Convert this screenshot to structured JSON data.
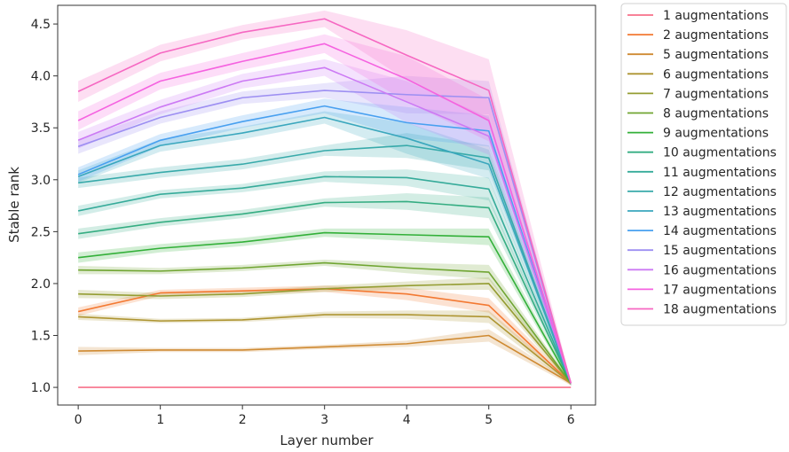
{
  "chart_data": {
    "type": "line",
    "xlabel": "Layer number",
    "ylabel": "Stable rank",
    "x": [
      0,
      1,
      2,
      3,
      4,
      5,
      6
    ],
    "xlim": [
      -0.25,
      6.3
    ],
    "ylim": [
      0.83,
      4.68
    ],
    "xticks": [
      "0",
      "1",
      "2",
      "3",
      "4",
      "5",
      "6"
    ],
    "yticks": [
      "1.0",
      "1.5",
      "2.0",
      "2.5",
      "3.0",
      "3.5",
      "4.0",
      "4.5"
    ],
    "grid": false,
    "legend_position": "outside-right",
    "series": [
      {
        "name": "1 augmentations",
        "color": "#f77189",
        "values": [
          1.0,
          1.0,
          1.0,
          1.0,
          1.0,
          1.0,
          1.0
        ],
        "ci": [
          0.0,
          0.0,
          0.0,
          0.0,
          0.0,
          0.0,
          0.0
        ]
      },
      {
        "name": "2 augmentations",
        "color": "#f37932",
        "values": [
          1.73,
          1.91,
          1.93,
          1.95,
          1.9,
          1.79,
          1.04
        ],
        "ci": [
          0.04,
          0.03,
          0.03,
          0.03,
          0.06,
          0.07,
          0.02
        ]
      },
      {
        "name": "5 augmentations",
        "color": "#cf8a32",
        "values": [
          1.35,
          1.36,
          1.36,
          1.39,
          1.42,
          1.5,
          1.04
        ],
        "ci": [
          0.04,
          0.02,
          0.02,
          0.02,
          0.03,
          0.06,
          0.02
        ]
      },
      {
        "name": "6 augmentations",
        "color": "#ae9532",
        "values": [
          1.68,
          1.64,
          1.65,
          1.7,
          1.7,
          1.68,
          1.04
        ],
        "ci": [
          0.03,
          0.02,
          0.02,
          0.03,
          0.04,
          0.06,
          0.02
        ]
      },
      {
        "name": "7 augmentations",
        "color": "#949d32",
        "values": [
          1.9,
          1.88,
          1.9,
          1.95,
          1.98,
          2.0,
          1.04
        ],
        "ci": [
          0.04,
          0.03,
          0.03,
          0.03,
          0.04,
          0.06,
          0.02
        ]
      },
      {
        "name": "8 augmentations",
        "color": "#70a532",
        "values": [
          2.13,
          2.12,
          2.15,
          2.2,
          2.15,
          2.11,
          1.04
        ],
        "ci": [
          0.04,
          0.03,
          0.03,
          0.03,
          0.05,
          0.07,
          0.02
        ]
      },
      {
        "name": "9 augmentations",
        "color": "#33b039",
        "values": [
          2.25,
          2.34,
          2.4,
          2.49,
          2.47,
          2.45,
          1.04
        ],
        "ci": [
          0.05,
          0.04,
          0.04,
          0.04,
          0.06,
          0.08,
          0.02
        ]
      },
      {
        "name": "10 augmentations",
        "color": "#35ad82",
        "values": [
          2.48,
          2.59,
          2.67,
          2.78,
          2.79,
          2.73,
          1.04
        ],
        "ci": [
          0.05,
          0.04,
          0.04,
          0.04,
          0.08,
          0.1,
          0.02
        ]
      },
      {
        "name": "11 augmentations",
        "color": "#36ab9a",
        "values": [
          2.7,
          2.86,
          2.92,
          3.03,
          3.02,
          2.91,
          1.04
        ],
        "ci": [
          0.05,
          0.04,
          0.04,
          0.05,
          0.08,
          0.11,
          0.02
        ]
      },
      {
        "name": "12 augmentations",
        "color": "#38aaaa",
        "values": [
          2.97,
          3.07,
          3.15,
          3.28,
          3.33,
          3.21,
          1.04
        ],
        "ci": [
          0.05,
          0.05,
          0.05,
          0.05,
          0.12,
          0.12,
          0.02
        ]
      },
      {
        "name": "13 augmentations",
        "color": "#3aa7bd",
        "values": [
          3.03,
          3.33,
          3.45,
          3.6,
          3.4,
          3.15,
          1.04
        ],
        "ci": [
          0.06,
          0.06,
          0.06,
          0.06,
          0.15,
          0.14,
          0.02
        ]
      },
      {
        "name": "14 augmentations",
        "color": "#48a0f0",
        "values": [
          3.05,
          3.38,
          3.56,
          3.71,
          3.55,
          3.47,
          1.04
        ],
        "ci": [
          0.07,
          0.06,
          0.06,
          0.07,
          0.15,
          0.15,
          0.02
        ]
      },
      {
        "name": "15 augmentations",
        "color": "#9d8ff2",
        "values": [
          3.32,
          3.6,
          3.79,
          3.86,
          3.82,
          3.79,
          1.04
        ],
        "ci": [
          0.07,
          0.06,
          0.06,
          0.07,
          0.18,
          0.16,
          0.02
        ]
      },
      {
        "name": "16 augmentations",
        "color": "#cc7af4",
        "values": [
          3.38,
          3.7,
          3.95,
          4.08,
          3.75,
          3.42,
          1.04
        ],
        "ci": [
          0.08,
          0.07,
          0.07,
          0.08,
          0.2,
          0.18,
          0.02
        ]
      },
      {
        "name": "17 augmentations",
        "color": "#f562e0",
        "values": [
          3.57,
          3.95,
          4.14,
          4.31,
          3.97,
          3.57,
          1.04
        ],
        "ci": [
          0.09,
          0.08,
          0.08,
          0.09,
          0.22,
          0.2,
          0.02
        ]
      },
      {
        "name": "18 augmentations",
        "color": "#f668c2",
        "values": [
          3.85,
          4.22,
          4.42,
          4.55,
          4.2,
          3.86,
          1.04
        ],
        "ci": [
          0.1,
          0.08,
          0.07,
          0.08,
          0.24,
          0.3,
          0.02
        ]
      }
    ]
  }
}
